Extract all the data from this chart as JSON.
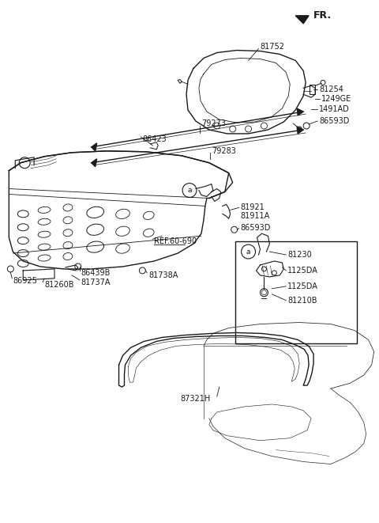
{
  "bg_color": "#ffffff",
  "line_color": "#1a1a1a",
  "parts": {
    "top_trim": "81752",
    "rod1": "79273",
    "rod2": "79283",
    "clip1": "86423",
    "clip_r1": "81254",
    "clip_r2": "1249GE",
    "clip_r3": "1491AD",
    "screw_r": "86593D",
    "latch_assy": "81921",
    "latch_sub": "81911A",
    "ref": "REF.60-690",
    "screw_mid": "86593D",
    "striker": "86439B",
    "bolt1": "81738A",
    "bracket": "81737A",
    "pin": "86925",
    "plate": "81260B",
    "cable": "81230",
    "nut1": "1125DA",
    "nut2": "1125DA",
    "hinge": "81210B",
    "seal": "87321H"
  }
}
